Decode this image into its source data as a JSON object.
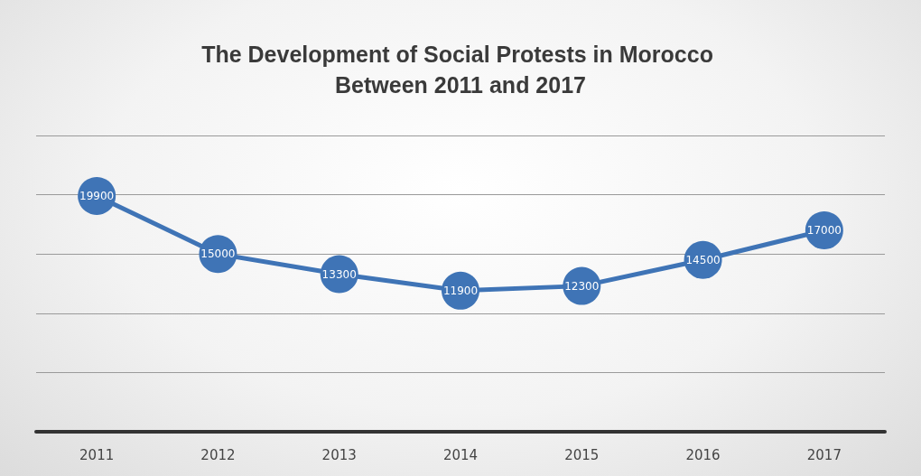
{
  "chart_data": {
    "type": "line",
    "title": "The Development of Social Protests in Morocco Between 2011 and 2017",
    "categories": [
      "2011",
      "2012",
      "2013",
      "2014",
      "2015",
      "2016",
      "2017"
    ],
    "series": [
      {
        "color": "#3f74b6",
        "values": [
          19900,
          15000,
          13300,
          11900,
          12300,
          14500,
          17000
        ]
      }
    ],
    "ylim": [
      0,
      25000
    ],
    "yticks": [
      {
        "value": 0,
        "label": null
      },
      {
        "value": 5000,
        "label": null
      },
      {
        "value": 10000,
        "label": null
      },
      {
        "value": 15000,
        "label": null
      },
      {
        "value": 20000,
        "label": null
      },
      {
        "value": 25000,
        "label": null
      }
    ],
    "tick_labels": "x",
    "grid": "y",
    "data_labels": true,
    "marker": "circle",
    "line_style": "solid"
  }
}
